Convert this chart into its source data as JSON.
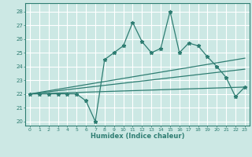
{
  "xlabel": "Humidex (Indice chaleur)",
  "bg_color": "#cce8e4",
  "grid_color": "#ffffff",
  "line_color": "#2e7d72",
  "xlim": [
    -0.5,
    23.5
  ],
  "ylim": [
    19.7,
    28.6
  ],
  "xticks": [
    0,
    1,
    2,
    3,
    4,
    5,
    6,
    7,
    8,
    9,
    10,
    11,
    12,
    13,
    14,
    15,
    16,
    17,
    18,
    19,
    20,
    21,
    22,
    23
  ],
  "yticks": [
    20,
    21,
    22,
    23,
    24,
    25,
    26,
    27,
    28
  ],
  "main_x": [
    0,
    1,
    2,
    3,
    4,
    5,
    6,
    7,
    8,
    9,
    10,
    11,
    12,
    13,
    14,
    15,
    16,
    17,
    18,
    19,
    20,
    21,
    22,
    23
  ],
  "main_y": [
    22,
    22,
    22,
    22,
    22,
    22,
    21.5,
    20,
    24.5,
    25,
    25.5,
    27.2,
    25.8,
    25,
    25.3,
    28,
    25,
    25.7,
    25.5,
    24.7,
    24,
    23.2,
    21.8,
    22.5
  ],
  "trend1_x": [
    0,
    23
  ],
  "trend1_y": [
    22,
    22.5
  ],
  "trend2_x": [
    0,
    23
  ],
  "trend2_y": [
    22,
    23.8
  ],
  "trend3_x": [
    0,
    23
  ],
  "trend3_y": [
    22,
    24.6
  ]
}
